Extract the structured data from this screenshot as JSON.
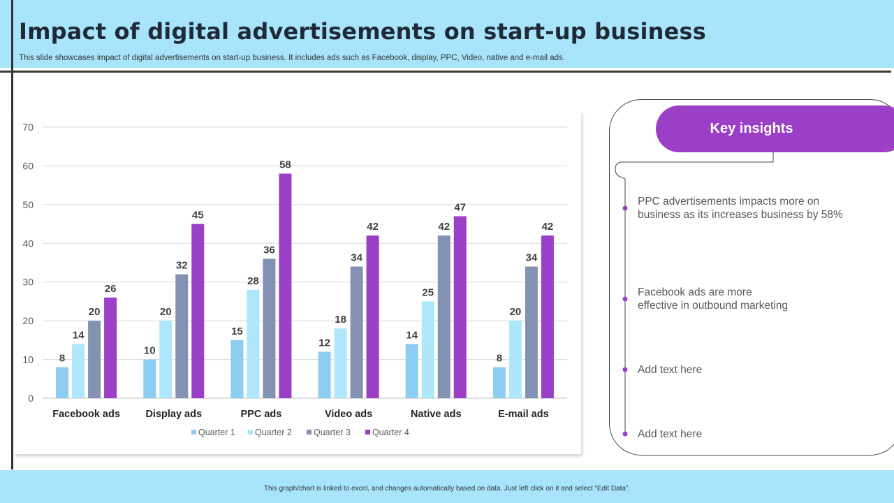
{
  "header": {
    "title": "Impact of digital advertisements on start-up business",
    "subtitle": "This slide showcases impact of digital advertisements on start-up business. It includes ads such as Facebook, display, PPC, Video, native and e-mail ads."
  },
  "chart_data": {
    "type": "bar",
    "title": "",
    "xlabel": "",
    "ylabel": "",
    "categories": [
      "Facebook ads",
      "Display ads",
      "PPC ads",
      "Video ads",
      "Native ads",
      "E-mail ads"
    ],
    "series": [
      {
        "name": "Quarter 1",
        "values": [
          8,
          10,
          15,
          12,
          14,
          8
        ],
        "color": "#8dcdf2"
      },
      {
        "name": "Quarter 2",
        "values": [
          14,
          20,
          28,
          18,
          25,
          20
        ],
        "color": "#aee6fb"
      },
      {
        "name": "Quarter 3",
        "values": [
          20,
          32,
          36,
          34,
          42,
          34
        ],
        "color": "#8391b3"
      },
      {
        "name": "Quarter 4",
        "values": [
          26,
          45,
          58,
          42,
          47,
          42
        ],
        "color": "#9b3fc6"
      }
    ],
    "ylim": [
      0,
      70
    ],
    "yticks": [
      0,
      10,
      20,
      30,
      40,
      50,
      60,
      70
    ],
    "grid": true,
    "data_labels": true,
    "legend": "bottom"
  },
  "insights": {
    "title": "Key insights",
    "accent_color": "#9b3fc6",
    "items": [
      {
        "lines": [
          "PPC advertisements impacts more on",
          "business as its increases business by 58%"
        ]
      },
      {
        "lines": [
          "Facebook ads are more",
          "effective in outbound marketing"
        ]
      },
      {
        "lines": [
          "Add text here"
        ]
      },
      {
        "lines": [
          "Add text here"
        ]
      }
    ]
  },
  "footer": {
    "note": "This graph/chart is linked to excel, and changes automatically based on data. Just left click on it and select “Edit Data”."
  }
}
